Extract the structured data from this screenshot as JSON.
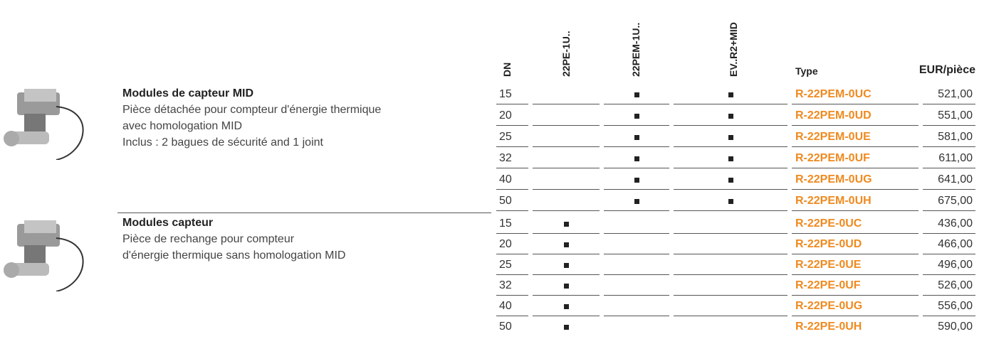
{
  "header": {
    "columns": [
      "DN",
      "22PE-1U..",
      "22PEM-1U..",
      "EV..R2+MID",
      "Type",
      "EUR/pièce"
    ]
  },
  "groups": [
    {
      "title": "Modules de capteur MID",
      "description": [
        "Pièce détachée pour compteur d'énergie thermique",
        "avec homologation MID",
        "Inclus : 2 bagues de sécurité and 1 joint"
      ],
      "rows": [
        {
          "dn": 15,
          "marks": [
            false,
            true,
            true
          ],
          "type": "R-22PEM-0UC",
          "price": "521,00"
        },
        {
          "dn": 20,
          "marks": [
            false,
            true,
            true
          ],
          "type": "R-22PEM-0UD",
          "price": "551,00"
        },
        {
          "dn": 25,
          "marks": [
            false,
            true,
            true
          ],
          "type": "R-22PEM-0UE",
          "price": "581,00"
        },
        {
          "dn": 32,
          "marks": [
            false,
            true,
            true
          ],
          "type": "R-22PEM-0UF",
          "price": "611,00"
        },
        {
          "dn": 40,
          "marks": [
            false,
            true,
            true
          ],
          "type": "R-22PEM-0UG",
          "price": "641,00"
        },
        {
          "dn": 50,
          "marks": [
            false,
            true,
            true
          ],
          "type": "R-22PEM-0UH",
          "price": "675,00"
        }
      ]
    },
    {
      "title": "Modules capteur",
      "description": [
        "Pièce de rechange pour compteur",
        "d'énergie thermique sans homologation MID"
      ],
      "rows": [
        {
          "dn": 15,
          "marks": [
            true,
            false,
            false
          ],
          "type": "R-22PE-0UC",
          "price": "436,00"
        },
        {
          "dn": 20,
          "marks": [
            true,
            false,
            false
          ],
          "type": "R-22PE-0UD",
          "price": "466,00"
        },
        {
          "dn": 25,
          "marks": [
            true,
            false,
            false
          ],
          "type": "R-22PE-0UE",
          "price": "496,00"
        },
        {
          "dn": 32,
          "marks": [
            true,
            false,
            false
          ],
          "type": "R-22PE-0UF",
          "price": "526,00"
        },
        {
          "dn": 40,
          "marks": [
            true,
            false,
            false
          ],
          "type": "R-22PE-0UG",
          "price": "556,00"
        },
        {
          "dn": 50,
          "marks": [
            true,
            false,
            false
          ],
          "type": "R-22PE-0UH",
          "price": "590,00"
        }
      ]
    }
  ]
}
